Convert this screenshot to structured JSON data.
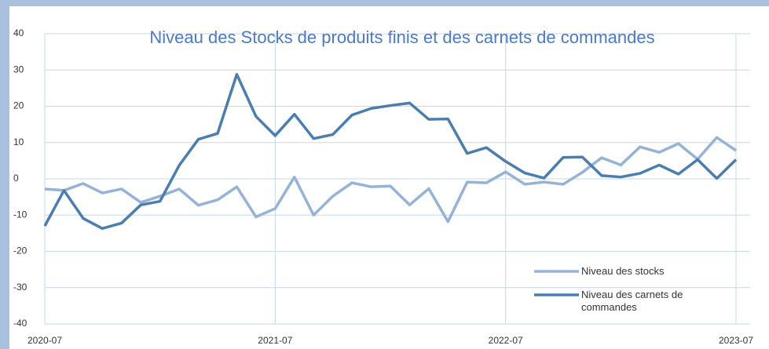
{
  "chart_data": {
    "type": "line",
    "title": "Niveau des Stocks de produits finis et des carnets de commandes",
    "categories": [
      "2020-07",
      null,
      null,
      null,
      null,
      null,
      null,
      null,
      null,
      null,
      null,
      null,
      "2021-07",
      null,
      null,
      null,
      null,
      null,
      null,
      null,
      null,
      null,
      null,
      null,
      "2022-07",
      null,
      null,
      null,
      null,
      null,
      null,
      null,
      null,
      null,
      null,
      null,
      "2023-07"
    ],
    "series": [
      {
        "name": "Niveau des stocks",
        "color": "#95b3d7",
        "values": [
          -2.8,
          -3.2,
          -1.3,
          -3.9,
          -2.8,
          -6.5,
          -4.8,
          -2.8,
          -7.3,
          -5.8,
          -2.2,
          -10.5,
          -8.2,
          0.5,
          -10,
          -4.8,
          -1.1,
          -2.2,
          -2,
          -7.2,
          -2.7,
          -11.8,
          -0.9,
          -1.1,
          1.9,
          -1.5,
          -0.9,
          -1.5,
          1.8,
          5.8,
          3.8,
          8.8,
          7.3,
          9.7,
          5.4,
          11.4,
          7.8
        ]
      },
      {
        "name": "Niveau des carnets de commandes",
        "color": "#4a7eb0",
        "values": [
          -13,
          -3.2,
          -10.9,
          -13.7,
          -12.2,
          -7.2,
          -6.2,
          3.7,
          10.9,
          12.5,
          28.8,
          17.2,
          11.9,
          17.8,
          11.1,
          12.2,
          17.6,
          19.4,
          20.2,
          20.9,
          16.4,
          16.5,
          7,
          8.6,
          4.8,
          1.6,
          0.2,
          5.9,
          6,
          0.9,
          0.5,
          1.5,
          3.8,
          1.3,
          5.3,
          0.1,
          5.3
        ]
      }
    ],
    "ylim": [
      -40,
      40
    ],
    "yticks": [
      -40,
      -30,
      -20,
      -10,
      0,
      10,
      20,
      30,
      40
    ],
    "grid": true
  }
}
